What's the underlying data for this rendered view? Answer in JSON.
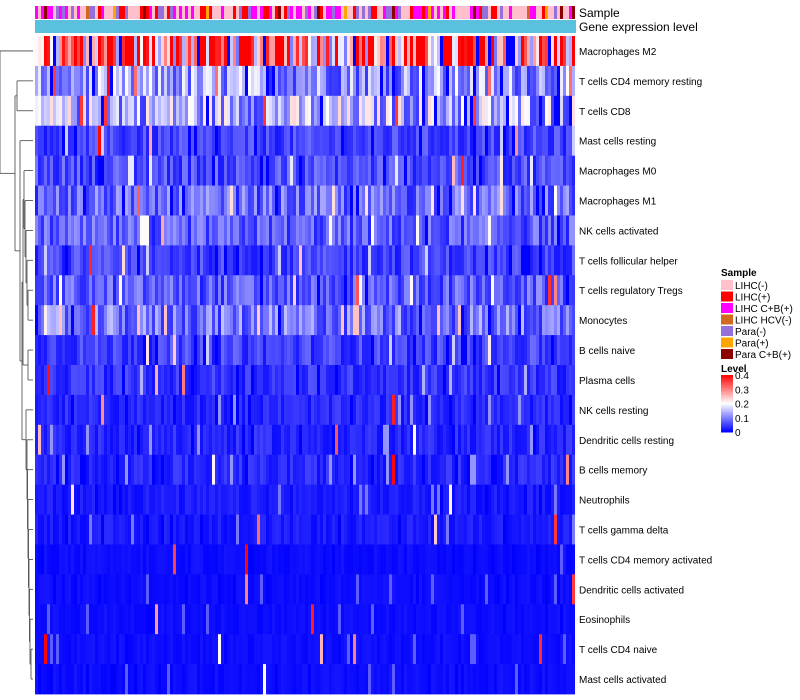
{
  "chart_data": {
    "type": "heatmap",
    "title": "",
    "annotation_rows": [
      "Sample",
      "Gene expression level"
    ],
    "rows": [
      "Macrophages M2",
      "T cells CD4 memory resting",
      "T cells CD8",
      "Mast cells resting",
      "Macrophages M0",
      "Macrophages M1",
      "NK cells activated",
      "T cells follicular helper",
      "T cells regulatory  Tregs",
      "Monocytes",
      "B cells naive",
      "Plasma cells",
      "NK cells resting",
      "Dendritic cells resting",
      "B cells memory",
      "Neutrophils",
      "T cells gamma delta",
      "T cells CD4 memory activated",
      "Dendritic cells activated",
      "Eosinophils",
      "T cells CD4 naive",
      "Mast cells activated"
    ],
    "row_mean_levels": [
      0.3,
      0.12,
      0.14,
      0.05,
      0.06,
      0.08,
      0.07,
      0.05,
      0.07,
      0.09,
      0.05,
      0.04,
      0.03,
      0.03,
      0.03,
      0.02,
      0.02,
      0.01,
      0.01,
      0.01,
      0.01,
      0.01
    ],
    "sample_legend": {
      "title": "Sample",
      "items": [
        {
          "label": "LIHC(-)",
          "color": "#ffc0cb"
        },
        {
          "label": "LIHC(+)",
          "color": "#ff0000"
        },
        {
          "label": "LIHC C+B(+)",
          "color": "#ff00ff"
        },
        {
          "label": "LIHC HCV(-)",
          "color": "#d2691e"
        },
        {
          "label": "Para(-)",
          "color": "#9370db"
        },
        {
          "label": "Para(+)",
          "color": "#ffa500"
        },
        {
          "label": "Para C+B(+)",
          "color": "#8b0000"
        }
      ]
    },
    "level_legend": {
      "title": "Level",
      "min": 0,
      "max": 0.4,
      "ticks": [
        "0.4",
        "0.3",
        "0.2",
        "0.1",
        "0"
      ],
      "colors": [
        "#0000ff",
        "#ffffff",
        "#ff0000"
      ]
    },
    "expression_bar_color": "#5bc0de"
  }
}
